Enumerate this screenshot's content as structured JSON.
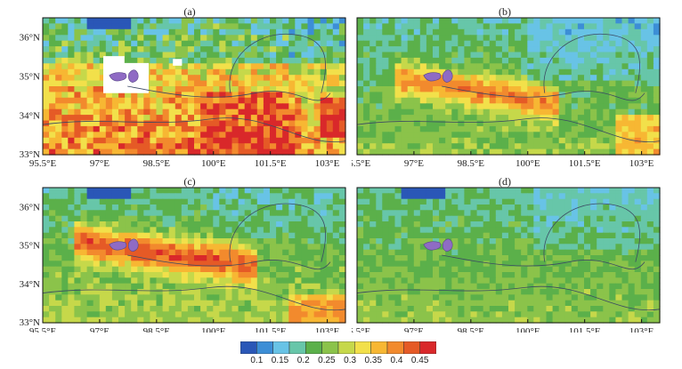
{
  "panels": [
    {
      "id": "a",
      "title": "(a)"
    },
    {
      "id": "b",
      "title": "(b)"
    },
    {
      "id": "c",
      "title": "(c)"
    },
    {
      "id": "d",
      "title": "(d)"
    }
  ],
  "axes": {
    "xticks": [
      "95.5°E",
      "97°E",
      "98.5°E",
      "100°E",
      "101.5°E",
      "103°E"
    ],
    "yticks": [
      "36°N",
      "35°N",
      "34°N",
      "33°N"
    ]
  },
  "colorbar": {
    "labels": [
      "0.1",
      "0.15",
      "0.2",
      "0.25",
      "0.3",
      "0.35",
      "0.4",
      "0.45"
    ],
    "colors": [
      "#2a57b7",
      "#3c8ed6",
      "#68c3e6",
      "#67c6a9",
      "#5bb04a",
      "#8bc34a",
      "#c6d84a",
      "#f2e04a",
      "#f7b733",
      "#f28a2d",
      "#e55a26",
      "#d9282a"
    ]
  }
}
